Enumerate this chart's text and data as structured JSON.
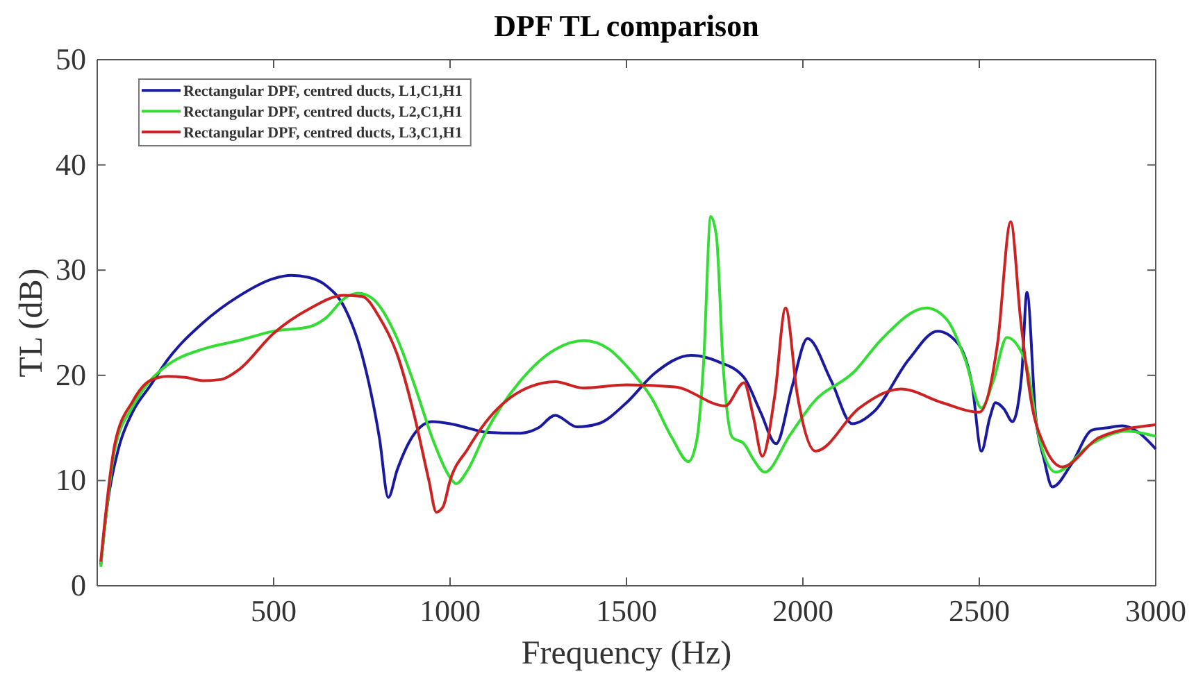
{
  "chart_data": {
    "type": "line",
    "title": "DPF TL comparison",
    "xlabel": "Frequency (Hz)",
    "ylabel": "TL (dB)",
    "xlim": [
      0,
      3000
    ],
    "xticks": [
      500,
      1000,
      1500,
      2000,
      2500,
      3000
    ],
    "ylim": [
      0,
      50
    ],
    "yticks": [
      0,
      10,
      20,
      30,
      40,
      50
    ],
    "grid": false,
    "legend": "top left",
    "line_style": "solid",
    "series": [
      {
        "name": "Rectangular DPF, centred ducts, L1,C1,H1",
        "color": "#1a1aa0",
        "x": [
          10,
          30,
          60,
          100,
          150,
          200,
          300,
          400,
          500,
          550,
          600,
          650,
          700,
          750,
          800,
          825,
          850,
          900,
          950,
          1000,
          1050,
          1100,
          1200,
          1250,
          1298,
          1360,
          1420,
          1500,
          1580,
          1683,
          1760,
          1833,
          1880,
          1924,
          1970,
          2013,
          2080,
          2140,
          2200,
          2300,
          2382,
          2440,
          2480,
          2506,
          2530,
          2546,
          2570,
          2594,
          2620,
          2635,
          2660,
          2683,
          2707,
          2760,
          2820,
          2860,
          2905,
          2950,
          3000
        ],
        "values": [
          2,
          8,
          13,
          16.5,
          19,
          21.5,
          25,
          27.5,
          29.2,
          29.5,
          29.3,
          28.5,
          26.5,
          22,
          14,
          8.4,
          11,
          14.5,
          15.6,
          15.4,
          15,
          14.6,
          14.5,
          15,
          16.2,
          15.1,
          15.4,
          17.4,
          20.2,
          21.9,
          21.3,
          19.8,
          16.5,
          13.5,
          19,
          23.5,
          19.5,
          15.4,
          16.5,
          21.5,
          24.2,
          23,
          19,
          12.8,
          16,
          17.4,
          16.8,
          15.6,
          20,
          27.9,
          16,
          12.1,
          9.4,
          11.5,
          14.8,
          15,
          15.2,
          14.6,
          13
        ]
      },
      {
        "name": "Rectangular DPF, centred ducts, L2,C1,H1",
        "color": "#33dd33",
        "x": [
          10,
          50,
          100,
          150,
          200,
          300,
          400,
          500,
          600,
          650,
          700,
          740,
          780,
          850,
          900,
          950,
          1000,
          1017,
          1050,
          1100,
          1200,
          1300,
          1380,
          1450,
          1500,
          1572,
          1630,
          1676,
          1700,
          1718,
          1739,
          1755,
          1774,
          1800,
          1833,
          1860,
          1892,
          1963,
          2029,
          2147,
          2225,
          2350,
          2408,
          2460,
          2506,
          2540,
          2578,
          2631,
          2670,
          2716,
          2814,
          2918,
          3000
        ],
        "values": [
          1.8,
          13,
          17,
          19.5,
          21,
          22.5,
          23.3,
          24.2,
          24.6,
          25.5,
          27.3,
          27.8,
          27.3,
          23.5,
          19,
          14,
          10.3,
          9.7,
          11,
          14.5,
          19.5,
          22.5,
          23.3,
          22.5,
          20.9,
          17.8,
          14,
          11.8,
          14,
          20.9,
          35.1,
          33.2,
          20.9,
          14.1,
          13.5,
          12,
          10.8,
          14.3,
          17.4,
          20.4,
          23.5,
          26.4,
          25.3,
          21.5,
          16.9,
          19.5,
          23.6,
          21.3,
          14,
          10.8,
          13.4,
          14.7,
          14.2
        ]
      },
      {
        "name": "Rectangular DPF, centred ducts, L3,C1,H1",
        "color": "#cc2222",
        "x": [
          10,
          50,
          100,
          150,
          200,
          250,
          300,
          350,
          400,
          500,
          600,
          700,
          750,
          800,
          850,
          900,
          940,
          961,
          980,
          1000,
          1050,
          1100,
          1200,
          1298,
          1376,
          1500,
          1637,
          1780,
          1833,
          1860,
          1885,
          1920,
          1951,
          1984,
          2036,
          2160,
          2278,
          2395,
          2500,
          2552,
          2589,
          2617,
          2650,
          2683,
          2735,
          2840,
          3000
        ],
        "values": [
          2.3,
          13.5,
          17.5,
          19.5,
          19.9,
          19.8,
          19.5,
          19.6,
          20.5,
          24,
          26.3,
          27.6,
          27.5,
          25.5,
          22,
          16,
          10,
          7,
          7.5,
          10,
          13,
          15.5,
          18.5,
          19.4,
          18.8,
          19.1,
          18.9,
          17.1,
          19.3,
          16,
          12.3,
          18,
          26.4,
          18.2,
          12.8,
          16.9,
          18.7,
          17.4,
          16.5,
          23.1,
          34.6,
          25.3,
          17,
          13.4,
          11.3,
          14.1,
          15.3
        ]
      }
    ]
  }
}
